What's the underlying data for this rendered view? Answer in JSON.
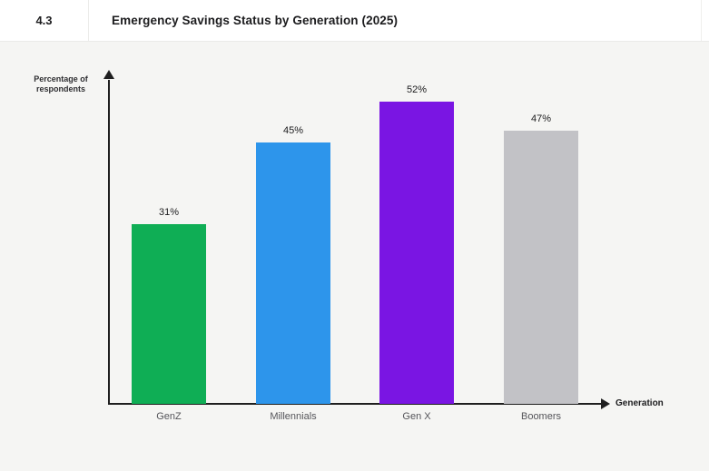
{
  "header": {
    "section_number": "4.3",
    "title": "Emergency Savings Status by Generation (2025)"
  },
  "chart_data": {
    "type": "bar",
    "title": "Emergency Savings Status by Generation (2025)",
    "categories": [
      "GenZ",
      "Millennials",
      "Gen X",
      "Boomers"
    ],
    "values": [
      31,
      45,
      52,
      47
    ],
    "value_labels": [
      "31%",
      "45%",
      "52%",
      "47%"
    ],
    "bar_colors": [
      "#0fae55",
      "#2d95eb",
      "#7a15e3",
      "#c2c2c6"
    ],
    "xlabel": "Generation",
    "ylabel": "Percentage of respondents",
    "ylabel_lines": [
      "Percentage of",
      "respondents"
    ],
    "ylim": [
      0,
      56
    ],
    "grid": false,
    "legend": "none"
  },
  "colors": {
    "header_bg": "#ffffff",
    "chart_bg": "#f5f5f3",
    "axis": "#1f1f1f",
    "value_text": "#1c1c1e",
    "category_text": "#55555a"
  }
}
